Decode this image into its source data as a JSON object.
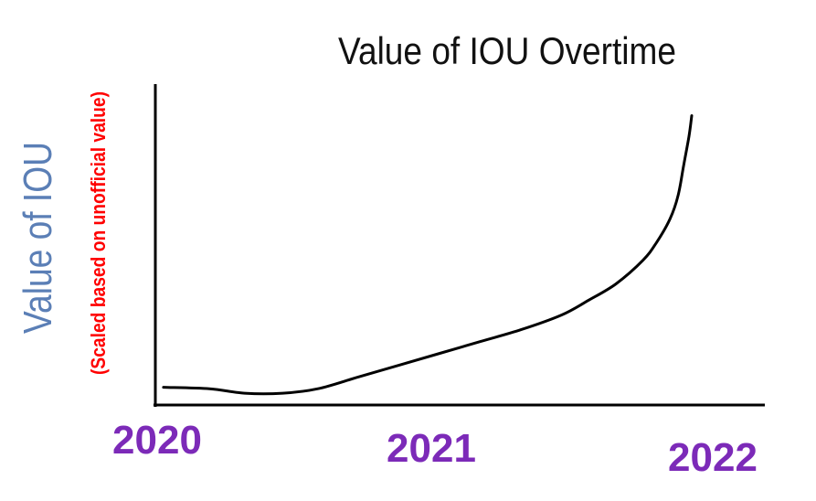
{
  "chart_data": {
    "type": "line",
    "title": "Value of IOU Overtime",
    "ylabel": "Value of IOU",
    "ylabel_note": "(Scaled based on unofficial value)",
    "xlabel": "",
    "x_ticks": [
      "2020",
      "2021",
      "2022"
    ],
    "xlim": [
      2020,
      2022.25
    ],
    "ylim": [
      0,
      100
    ],
    "grid": false,
    "series": [
      {
        "x": [
          2020.03,
          2020.2,
          2020.33,
          2020.47,
          2020.6,
          2020.75,
          2020.9,
          2021.05,
          2021.2,
          2021.35,
          2021.5,
          2021.6,
          2021.7,
          2021.8,
          2021.85,
          2021.9,
          2021.93,
          2021.95,
          2021.97,
          2021.98
        ],
        "y": [
          6,
          5.5,
          4,
          4,
          5.5,
          9.5,
          13.5,
          17.5,
          21.5,
          25.5,
          30.5,
          35.5,
          41,
          49,
          55,
          63,
          71,
          81,
          91,
          98
        ]
      }
    ],
    "colors": {
      "title": "#111111",
      "ylabel": "#5b7fb6",
      "ylabel_note": "#ff0000",
      "ticks": "#7c2ab8",
      "line": "#000000",
      "axes": "#000000"
    }
  }
}
